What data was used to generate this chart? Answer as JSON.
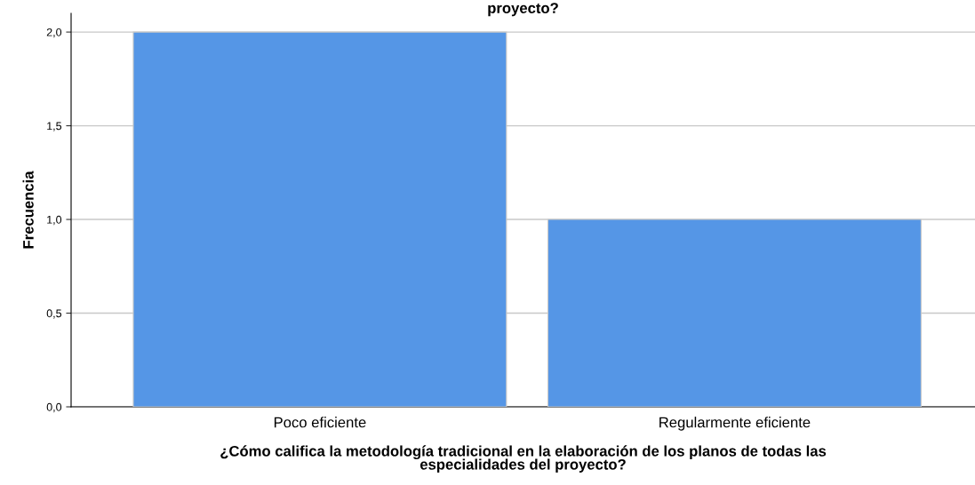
{
  "chart_data": {
    "type": "bar",
    "title": "proyecto?",
    "xlabel": "¿Cómo califica la metodología tradicional en la elaboración de los planos de todas las\nespecialidades del proyecto?",
    "ylabel": "Frecuencia",
    "categories": [
      "Poco eficiente",
      "Regularmente eficiente"
    ],
    "values": [
      2,
      1
    ],
    "color": "#5596e6",
    "ylim": [
      0,
      2.1
    ],
    "yticks": [
      {
        "value": 0,
        "label": "0,0"
      },
      {
        "value": 0.5,
        "label": "0,5"
      },
      {
        "value": 1,
        "label": "1,0"
      },
      {
        "value": 1.5,
        "label": "1,5"
      },
      {
        "value": 2,
        "label": "2,0"
      }
    ],
    "grid": "y"
  }
}
